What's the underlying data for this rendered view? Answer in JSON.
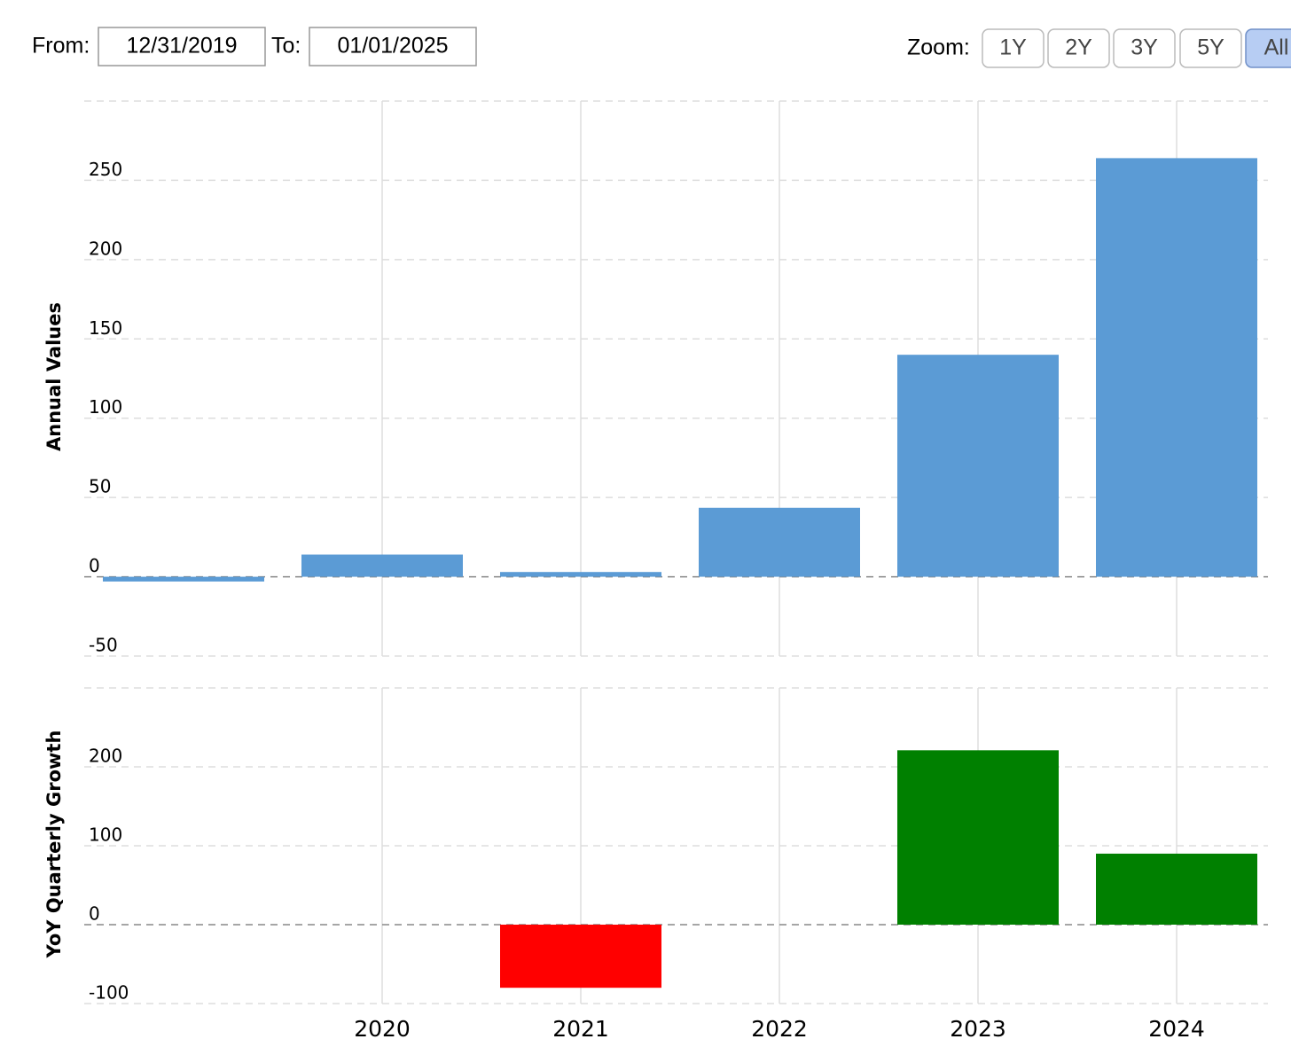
{
  "controls": {
    "from_label": "From:",
    "from_date": "12/31/2019",
    "to_label": "To:",
    "to_date": "01/01/2025",
    "zoom_label": "Zoom:",
    "zoom_buttons": [
      "1Y",
      "2Y",
      "3Y",
      "5Y",
      "All"
    ],
    "active_zoom": "All"
  },
  "chart_data": [
    {
      "type": "bar",
      "y_label": "Annual Values",
      "categories": [
        null,
        "2020",
        "2021",
        "2022",
        "2023",
        "2024"
      ],
      "values": [
        -3,
        14,
        3,
        43.5,
        140,
        264
      ],
      "color": "#5b9bd5",
      "ylim": [
        -50,
        300
      ],
      "yticks": [
        -50,
        0,
        50,
        100,
        150,
        200,
        250
      ],
      "grid": true
    },
    {
      "type": "bar",
      "y_label": "YoY Quarterly Growth",
      "categories": [
        null,
        "2020",
        "2021",
        "2022",
        "2023",
        "2024"
      ],
      "values": [
        null,
        null,
        -80,
        null,
        221,
        90
      ],
      "positive_color": "#008000",
      "negative_color": "#ff0000",
      "ylim": [
        -100,
        300
      ],
      "yticks": [
        -100,
        0,
        100,
        200
      ],
      "grid": true
    }
  ]
}
